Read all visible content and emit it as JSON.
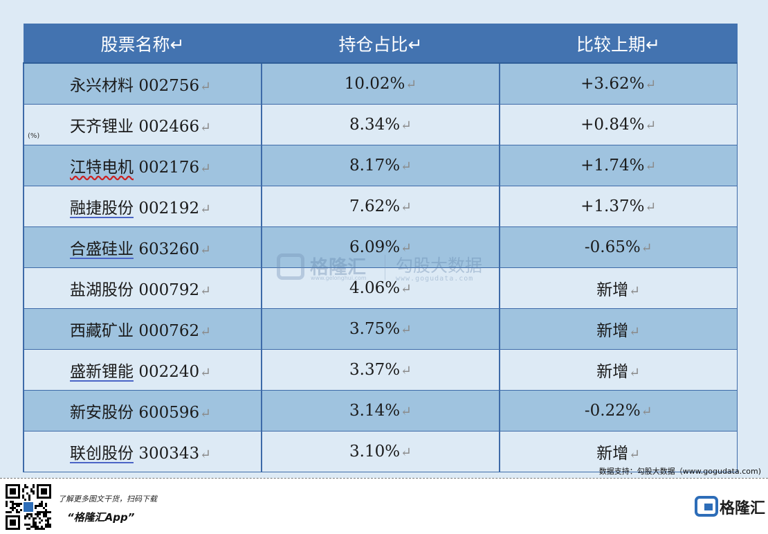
{
  "table": {
    "headers": [
      "股票名称↵",
      "持仓占比↵",
      "比较上期↵"
    ],
    "rows": [
      {
        "name": "永兴材料",
        "code": "002756",
        "share": "10.02%",
        "change": "+3.62%"
      },
      {
        "name": "天齐锂业",
        "code": "002466",
        "share": "8.34%",
        "change": "+0.84%"
      },
      {
        "name": "江特电机",
        "code": "002176",
        "share": "8.17%",
        "change": "+1.74%"
      },
      {
        "name": "融捷股份",
        "code": "002192",
        "share": "7.62%",
        "change": "+1.37%"
      },
      {
        "name": "合盛硅业",
        "code": "603260",
        "share": "6.09%",
        "change": "-0.65%"
      },
      {
        "name": "盐湖股份",
        "code": "000792",
        "share": "4.06%",
        "change": "新增"
      },
      {
        "name": "西藏矿业",
        "code": "000762",
        "share": "3.75%",
        "change": "新增"
      },
      {
        "name": "盛新锂能",
        "code": "002240",
        "share": "3.37%",
        "change": "新增"
      },
      {
        "name": "新安股份",
        "code": "600596",
        "share": "3.14%",
        "change": "-0.22%"
      },
      {
        "name": "联创股份",
        "code": "300343",
        "share": "3.10%",
        "change": "新增"
      }
    ],
    "paragraph_mark": "↵"
  },
  "unit_label": "(%)",
  "watermark": {
    "brand": "格隆汇",
    "brand_url": "www.gelonghui.com",
    "name": "勾股大数据",
    "url": "www.gogudata.com"
  },
  "source_note": "数据支持：勾股大数据（www.gogudata.com)",
  "footer": {
    "promo_text": "了解更多图文干货，扫码下载",
    "app_name": "“格隆汇App”",
    "brand": "格隆汇"
  },
  "colors": {
    "header_bg": "#4373b0",
    "row_dark": "#9fc3df",
    "row_light": "#ddeaf5",
    "border": "#3d6aa8",
    "brand_blue": "#2d6db8"
  }
}
